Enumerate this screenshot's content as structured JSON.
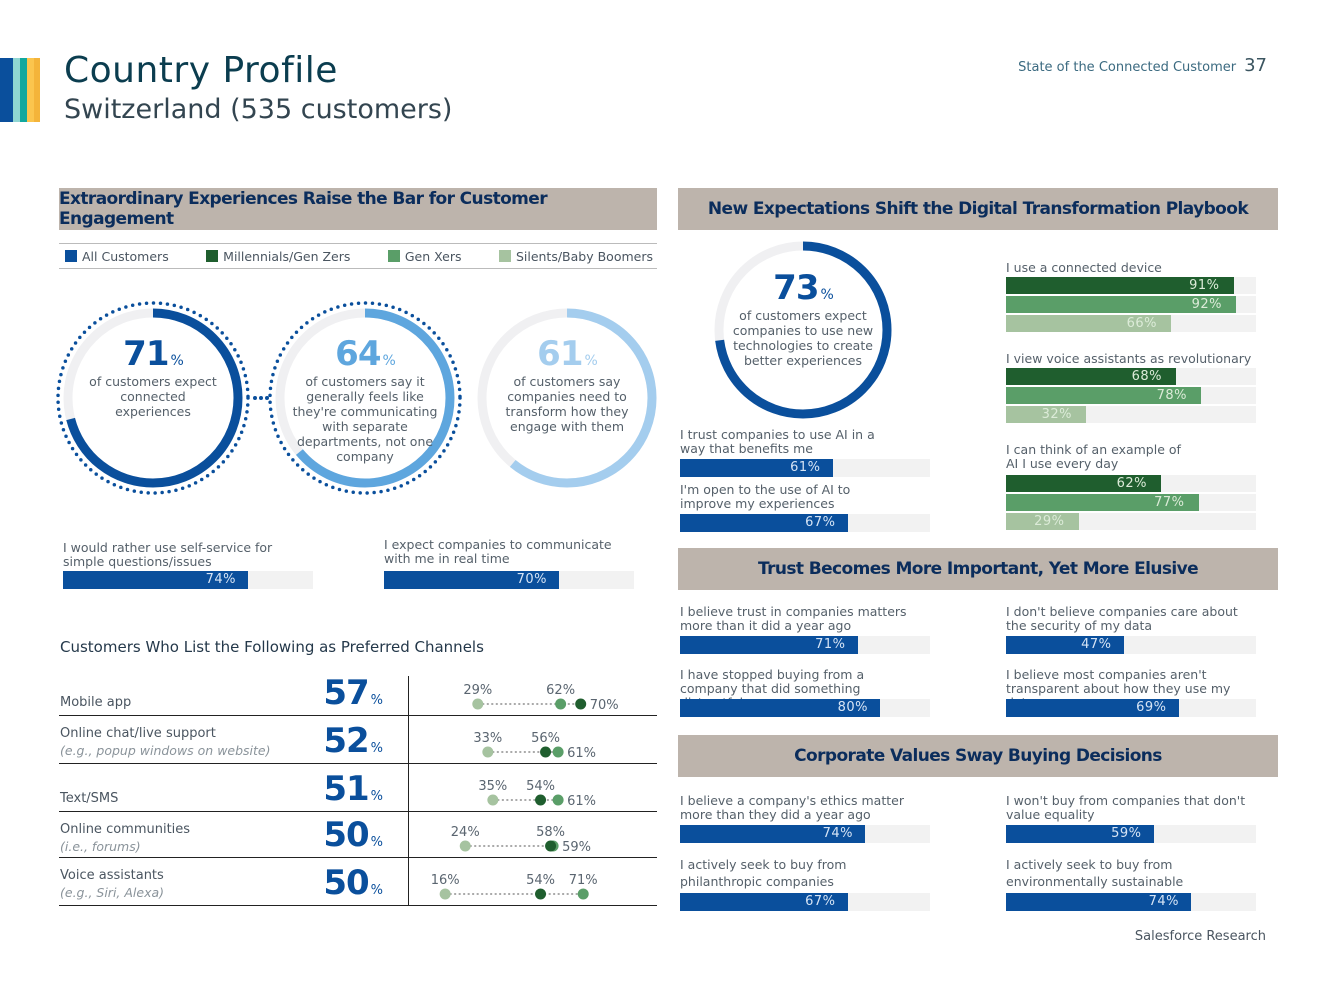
{
  "header": {
    "title": "Country Profile",
    "subtitle": "Switzerland (535 customers)",
    "report_name": "State of the Connected Customer",
    "page_number": "37"
  },
  "colors": {
    "all": "#0a4f9c",
    "millennials": "#1f5e2e",
    "genx": "#5a9e68",
    "silents": "#a6c3a0",
    "mid_blue": "#5ea6de",
    "light_blue": "#a4cdee",
    "section_bg": "#bdb4ac"
  },
  "left": {
    "section_title": "Extraordinary Experiences Raise the Bar for Customer Engagement",
    "legend": [
      {
        "label": "All Customers",
        "color": "#0a4f9c"
      },
      {
        "label": "Millennials/Gen Zers",
        "color": "#1f5e2e"
      },
      {
        "label": "Gen Xers",
        "color": "#5a9e68"
      },
      {
        "label": "Silents/Baby Boomers",
        "color": "#a6c3a0"
      }
    ],
    "donuts": [
      {
        "value": 71,
        "number": "71",
        "unit": "%",
        "text": "of customers expect connected experiences",
        "color": "#0a4f9c"
      },
      {
        "value": 64,
        "number": "64",
        "unit": "%",
        "text": "of customers say it generally feels like they're communicating with separate departments, not one company",
        "color": "#5ea6de"
      },
      {
        "value": 61,
        "number": "61",
        "unit": "%",
        "text": "of customers say companies need to transform how they engage with them",
        "color": "#a4cdee"
      }
    ],
    "bars": [
      {
        "label": "I would rather use self-service for simple questions/issues",
        "value": 74,
        "text": "74%"
      },
      {
        "label": "I expect companies to communicate with me in real time",
        "value": 70,
        "text": "70%"
      }
    ],
    "channels": {
      "title": "Customers Who List the Following as Preferred Channels",
      "unit": "%",
      "rows": [
        {
          "name": "Mobile app",
          "note": "",
          "all": "57",
          "silents": 29,
          "genx": 62,
          "millennials": 70
        },
        {
          "name": "Online chat/live support",
          "note": "(e.g., popup windows on website)",
          "all": "52",
          "silents": 33,
          "genx": 61,
          "millennials": 56
        },
        {
          "name": "Text/SMS",
          "note": "",
          "all": "51",
          "silents": 35,
          "genx": 61,
          "millennials": 54
        },
        {
          "name": "Online communities",
          "note": "(i.e., forums)",
          "all": "50",
          "silents": 24,
          "genx": 59,
          "millennials": 58
        },
        {
          "name": "Voice assistants",
          "note": "(e.g., Siri, Alexa)",
          "all": "50",
          "silents": 16,
          "genx": 71,
          "millennials": 54
        }
      ]
    }
  },
  "right": {
    "digital": {
      "section_title": "New Expectations Shift the Digital Transformation Playbook",
      "donut": {
        "value": 73,
        "number": "73",
        "unit": "%",
        "text": "of customers expect companies to use new technologies to create better experiences",
        "color": "#0a4f9c"
      },
      "bars": [
        {
          "label": "I trust companies to use AI in a way that benefits me",
          "value": 61,
          "text": "61%"
        },
        {
          "label": "I'm open to the use of AI to improve my experiences",
          "value": 67,
          "text": "67%"
        }
      ],
      "generational": [
        {
          "label": "I use a connected device",
          "millennials": 91,
          "genx": 92,
          "silents": 66
        },
        {
          "label": "I view voice assistants as revolutionary",
          "millennials": 68,
          "genx": 78,
          "silents": 32
        },
        {
          "label": "I can think of an example of AI I use every day",
          "millennials": 62,
          "genx": 77,
          "silents": 29
        }
      ]
    },
    "trust": {
      "section_title": "Trust Becomes More Important, Yet More Elusive",
      "bars": [
        {
          "label": "I believe trust in companies matters more than it did a year ago",
          "value": 71,
          "text": "71%"
        },
        {
          "label": "I don't believe companies care about the security of my data",
          "value": 47,
          "text": "47%"
        },
        {
          "label": "I have stopped buying from a company that did something distrustful",
          "value": 80,
          "text": "80%"
        },
        {
          "label": "I believe most companies aren't transparent about how they use my data",
          "value": 69,
          "text": "69%"
        }
      ]
    },
    "values": {
      "section_title": "Corporate Values Sway Buying Decisions",
      "bars": [
        {
          "label": "I believe a company's ethics matter more than they did a year ago",
          "value": 74,
          "text": "74%"
        },
        {
          "label": "I won't buy from companies that don't value equality",
          "value": 59,
          "text": "59%"
        },
        {
          "label": "I actively seek to buy from philanthropic companies",
          "value": 67,
          "text": "67%"
        },
        {
          "label": "I actively seek to buy from environmentally sustainable companies",
          "value": 74,
          "text": "74%"
        }
      ]
    }
  },
  "footer": {
    "text": "Salesforce Research"
  }
}
